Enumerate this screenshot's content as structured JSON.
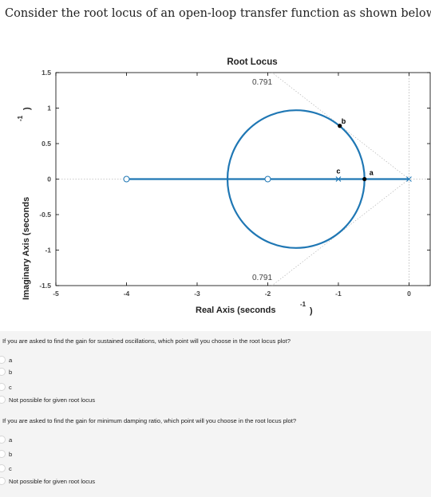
{
  "title": "Consider the root locus of an open-loop transfer function as shown below",
  "chart_data": {
    "type": "root-locus",
    "title": "Root Locus",
    "xlabel": "Real Axis (seconds",
    "xlabel_sup": "-1",
    "xlabel_close": ")",
    "ylabel": "Imaginary Axis (seconds",
    "ylabel_sup": "-1",
    "ylabel_close": ")",
    "xlim": [
      -5,
      0.3
    ],
    "ylim": [
      -1.5,
      1.5
    ],
    "xticks": [
      "-5",
      "-4",
      "-3",
      "-2",
      "-1",
      "0"
    ],
    "yticks": [
      "1.5",
      "1",
      "0.5",
      "0",
      "-0.5",
      "-1",
      "-1.5"
    ],
    "damping_label_top": "0.791",
    "damping_label_bottom": "0.791",
    "poles": [
      0
    ],
    "zeros": [
      -4,
      -2
    ],
    "circle": {
      "center": [
        -1.6,
        0
      ],
      "radius": 0.97
    },
    "branch_color": "#1f77b4",
    "points": [
      {
        "label": "a",
        "x": -0.63,
        "y": 0
      },
      {
        "label": "b",
        "x": -0.98,
        "y": 0.75
      },
      {
        "label": "c",
        "x": -1.0,
        "y": 0
      }
    ]
  },
  "questions": [
    {
      "text": "If you are asked to find the gain for sustained oscillations, which point will you choose in the root locus plot?",
      "options": [
        "a",
        "b",
        "c",
        "Not possible for given root locus"
      ]
    },
    {
      "text": "If you are asked to find the gain for minimum damping ratio, which point will you choose in the root locus plot?",
      "options": [
        "a",
        "b",
        "c",
        "Not possible for given root locus"
      ]
    }
  ]
}
